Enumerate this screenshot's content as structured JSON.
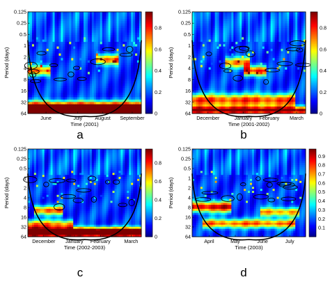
{
  "colors": {
    "colormap": [
      "#00007f",
      "#0000ff",
      "#007fff",
      "#00ffff",
      "#7fff7f",
      "#ffff00",
      "#ff7f00",
      "#ff0000",
      "#7f0000"
    ],
    "coi": "#000000",
    "contour": "#000000"
  },
  "chart_data": [
    {
      "type": "heatmap",
      "panel_label": "a",
      "xlabel": "Time (2001)",
      "ylabel": "Period (days)",
      "x_tick_labels": [
        "June",
        "July",
        "August",
        "September"
      ],
      "y_tick_labels": [
        "0.125",
        "0.25",
        "0.5",
        "1",
        "2",
        "4",
        "8",
        "16",
        "32",
        "64"
      ],
      "y_scale": "log2",
      "ylim": [
        0.125,
        64
      ],
      "colorbar_ticks": [
        "0",
        "0.2",
        "0.4",
        "0.6",
        "0.8"
      ],
      "colorbar_range": [
        0,
        0.95
      ]
    },
    {
      "type": "heatmap",
      "panel_label": "b",
      "xlabel": "Time (2001-2002)",
      "ylabel": "Period (days)",
      "x_tick_labels": [
        "December",
        "January",
        "February",
        "March"
      ],
      "y_tick_labels": [
        "0.125",
        "0.25",
        "0.5",
        "1",
        "2",
        "4",
        "8",
        "16",
        "32",
        "64"
      ],
      "y_scale": "log2",
      "ylim": [
        0.125,
        64
      ],
      "colorbar_ticks": [
        "0",
        "0.2",
        "0.4",
        "0.6",
        "0.8"
      ],
      "colorbar_range": [
        0,
        0.95
      ]
    },
    {
      "type": "heatmap",
      "panel_label": "c",
      "xlabel": "Time (2002-2003)",
      "ylabel": "Period (days)",
      "x_tick_labels": [
        "December",
        "January",
        "February",
        "March"
      ],
      "y_tick_labels": [
        "0.125",
        "0.25",
        "0.5",
        "1",
        "2",
        "4",
        "8",
        "16",
        "32",
        "64"
      ],
      "y_scale": "log2",
      "ylim": [
        0.125,
        64
      ],
      "colorbar_ticks": [
        "0",
        "0.2",
        "0.4",
        "0.6",
        "0.8"
      ],
      "colorbar_range": [
        0,
        0.95
      ]
    },
    {
      "type": "heatmap",
      "panel_label": "d",
      "xlabel": "Time (2003)",
      "ylabel": "Period (days)",
      "x_tick_labels": [
        "April",
        "May",
        "June",
        "July"
      ],
      "y_tick_labels": [
        "0.125",
        "0.25",
        "0.5",
        "1",
        "2",
        "4",
        "8",
        "16",
        "32",
        "64"
      ],
      "y_scale": "log2",
      "ylim": [
        0.125,
        64
      ],
      "colorbar_ticks": [
        "0.1",
        "0.2",
        "0.3",
        "0.4",
        "0.5",
        "0.6",
        "0.7",
        "0.8",
        "0.9"
      ],
      "colorbar_range": [
        0,
        0.98
      ]
    }
  ]
}
